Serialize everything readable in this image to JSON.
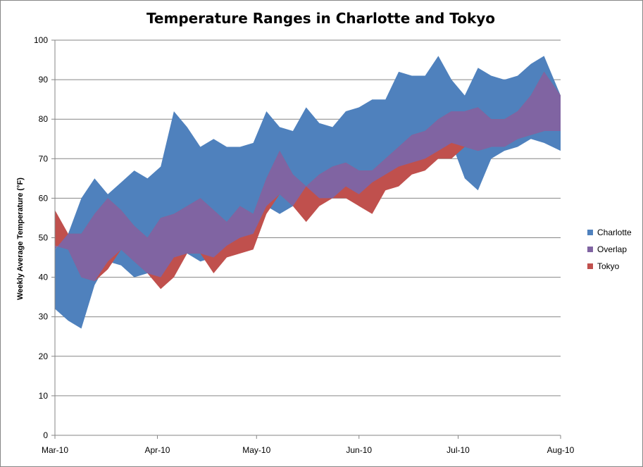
{
  "chart_data": {
    "type": "area",
    "title": "Temperature Ranges in Charlotte and Tokyo",
    "ylabel": "Weekly Average Temperature (°F)",
    "xlabel": "",
    "ylim": [
      0,
      100
    ],
    "yticks": [
      0,
      10,
      20,
      30,
      40,
      50,
      60,
      70,
      80,
      90,
      100
    ],
    "xticks": [
      "Mar-10",
      "Apr-10",
      "May-10",
      "Jun-10",
      "Jul-10",
      "Aug-10"
    ],
    "xdomain": [
      "2010-03-01",
      "2010-08-01"
    ],
    "grid": true,
    "legend_position": "right",
    "colors": {
      "Charlotte": "#4f81bd",
      "Overlap": "#8064a2",
      "Tokyo": "#c0504d"
    },
    "series": [
      {
        "name": "Charlotte",
        "x": [
          "2010-03-01",
          "2010-03-05",
          "2010-03-09",
          "2010-03-13",
          "2010-03-17",
          "2010-03-21",
          "2010-03-25",
          "2010-03-29",
          "2010-04-02",
          "2010-04-06",
          "2010-04-10",
          "2010-04-14",
          "2010-04-18",
          "2010-04-22",
          "2010-04-26",
          "2010-04-30",
          "2010-05-04",
          "2010-05-08",
          "2010-05-12",
          "2010-05-16",
          "2010-05-20",
          "2010-05-24",
          "2010-05-28",
          "2010-06-01",
          "2010-06-05",
          "2010-06-09",
          "2010-06-13",
          "2010-06-17",
          "2010-06-21",
          "2010-06-25",
          "2010-06-29",
          "2010-07-03",
          "2010-07-07",
          "2010-07-11",
          "2010-07-15",
          "2010-07-19",
          "2010-07-23",
          "2010-07-27",
          "2010-08-01"
        ],
        "high": [
          47,
          51,
          60,
          65,
          61,
          64,
          67,
          65,
          68,
          82,
          78,
          73,
          75,
          73,
          73,
          74,
          82,
          78,
          77,
          83,
          79,
          78,
          82,
          83,
          85,
          85,
          92,
          91,
          91,
          96,
          90,
          86,
          93,
          91,
          90,
          91,
          94,
          96,
          86
        ],
        "low": [
          32,
          29,
          27,
          38,
          44,
          43,
          40,
          41,
          40,
          45,
          46,
          44,
          45,
          48,
          50,
          51,
          58,
          56,
          58,
          63,
          60,
          60,
          63,
          61,
          64,
          66,
          68,
          69,
          70,
          72,
          74,
          65,
          62,
          70,
          72,
          73,
          75,
          74,
          72
        ]
      },
      {
        "name": "Tokyo",
        "x": [
          "2010-03-01",
          "2010-03-05",
          "2010-03-09",
          "2010-03-13",
          "2010-03-17",
          "2010-03-21",
          "2010-03-25",
          "2010-03-29",
          "2010-04-02",
          "2010-04-06",
          "2010-04-10",
          "2010-04-14",
          "2010-04-18",
          "2010-04-22",
          "2010-04-26",
          "2010-04-30",
          "2010-05-04",
          "2010-05-08",
          "2010-05-12",
          "2010-05-16",
          "2010-05-20",
          "2010-05-24",
          "2010-05-28",
          "2010-06-01",
          "2010-06-05",
          "2010-06-09",
          "2010-06-13",
          "2010-06-17",
          "2010-06-21",
          "2010-06-25",
          "2010-06-29",
          "2010-07-03",
          "2010-07-07",
          "2010-07-11",
          "2010-07-15",
          "2010-07-19",
          "2010-07-23",
          "2010-07-27",
          "2010-08-01"
        ],
        "high": [
          57,
          51,
          51,
          56,
          60,
          57,
          53,
          50,
          55,
          56,
          58,
          60,
          57,
          54,
          58,
          56,
          65,
          72,
          66,
          63,
          66,
          68,
          69,
          67,
          67,
          70,
          73,
          76,
          77,
          80,
          82,
          82,
          83,
          80,
          80,
          82,
          86,
          92,
          86
        ],
        "low": [
          48,
          47,
          40,
          39,
          42,
          47,
          44,
          41,
          37,
          40,
          46,
          46,
          41,
          45,
          46,
          47,
          56,
          61,
          58,
          54,
          58,
          60,
          60,
          58,
          56,
          62,
          63,
          66,
          67,
          70,
          70,
          73,
          72,
          73,
          73,
          75,
          76,
          77,
          77
        ]
      }
    ]
  }
}
